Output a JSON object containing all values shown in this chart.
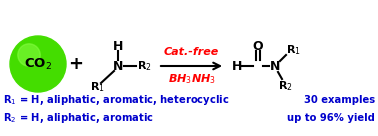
{
  "bg_color": "#ffffff",
  "co2_circle_color": "#44dd00",
  "co2_text": "CO$_2$",
  "plus_color": "#000000",
  "cat_free_text": "Cat.-free",
  "bh3nh3_text": "BH$_3$NH$_3$",
  "condition_color": "#ff0000",
  "blue_color": "#0000cc",
  "r1_desc": "R$_1$ = H, aliphatic, aromatic, heterocyclic",
  "r2_desc": "R$_2$ = H, aliphatic, aromatic",
  "examples_text": "30 examples",
  "yield_text": "up to 96% yield"
}
